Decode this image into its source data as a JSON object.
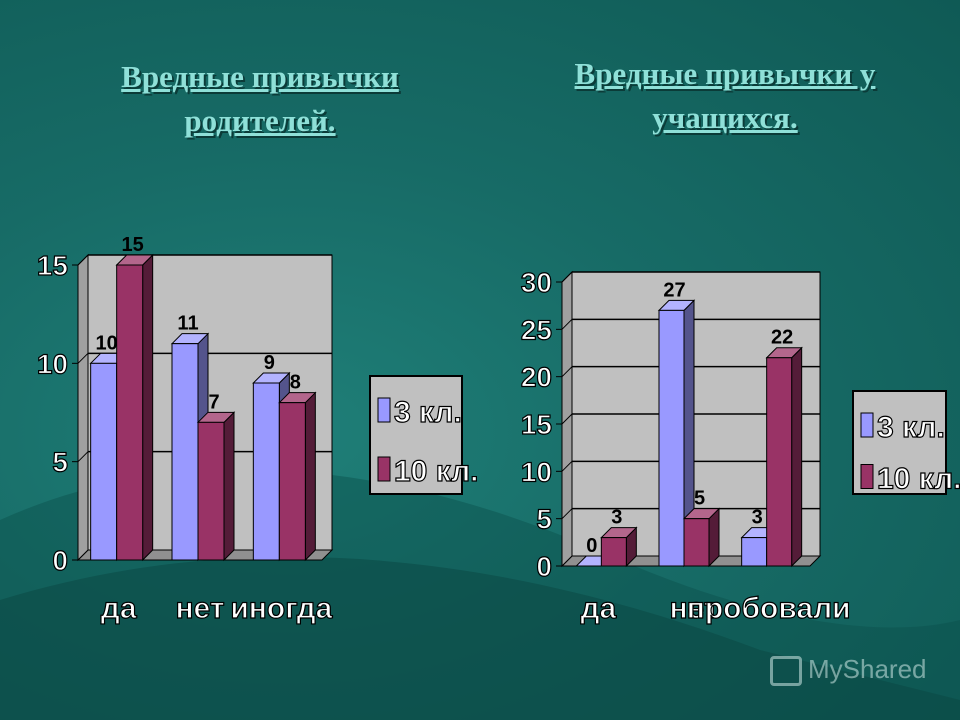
{
  "slide": {
    "watermark": "MyShared",
    "colors": {
      "background": "#176b66",
      "title": "#8fe0d8",
      "series1": "#9999ff",
      "series2": "#993366",
      "plot": "#c0c0c0"
    }
  },
  "chart_data": [
    {
      "type": "bar",
      "title": "Вредные привычки родителей.",
      "categories": [
        "да",
        "нет",
        "иногда"
      ],
      "series": [
        {
          "name": "3 кл.",
          "values": [
            10,
            11,
            9
          ]
        },
        {
          "name": "10 кл.",
          "values": [
            15,
            7,
            8
          ]
        }
      ],
      "ylim": [
        0,
        15
      ],
      "yticks": [
        "0",
        "5",
        "10",
        "15"
      ],
      "grid": true,
      "legend": "right"
    },
    {
      "type": "bar",
      "title": "Вредные привычки у учащихся.",
      "categories": [
        "да",
        "нет",
        "пробовали"
      ],
      "series": [
        {
          "name": "3 кл.",
          "values": [
            0,
            27,
            3
          ]
        },
        {
          "name": "10 кл.",
          "values": [
            3,
            5,
            22
          ]
        }
      ],
      "ylim": [
        0,
        30
      ],
      "yticks": [
        "0",
        "5",
        "10",
        "15",
        "20",
        "25",
        "30"
      ],
      "grid": true,
      "legend": "right"
    }
  ]
}
